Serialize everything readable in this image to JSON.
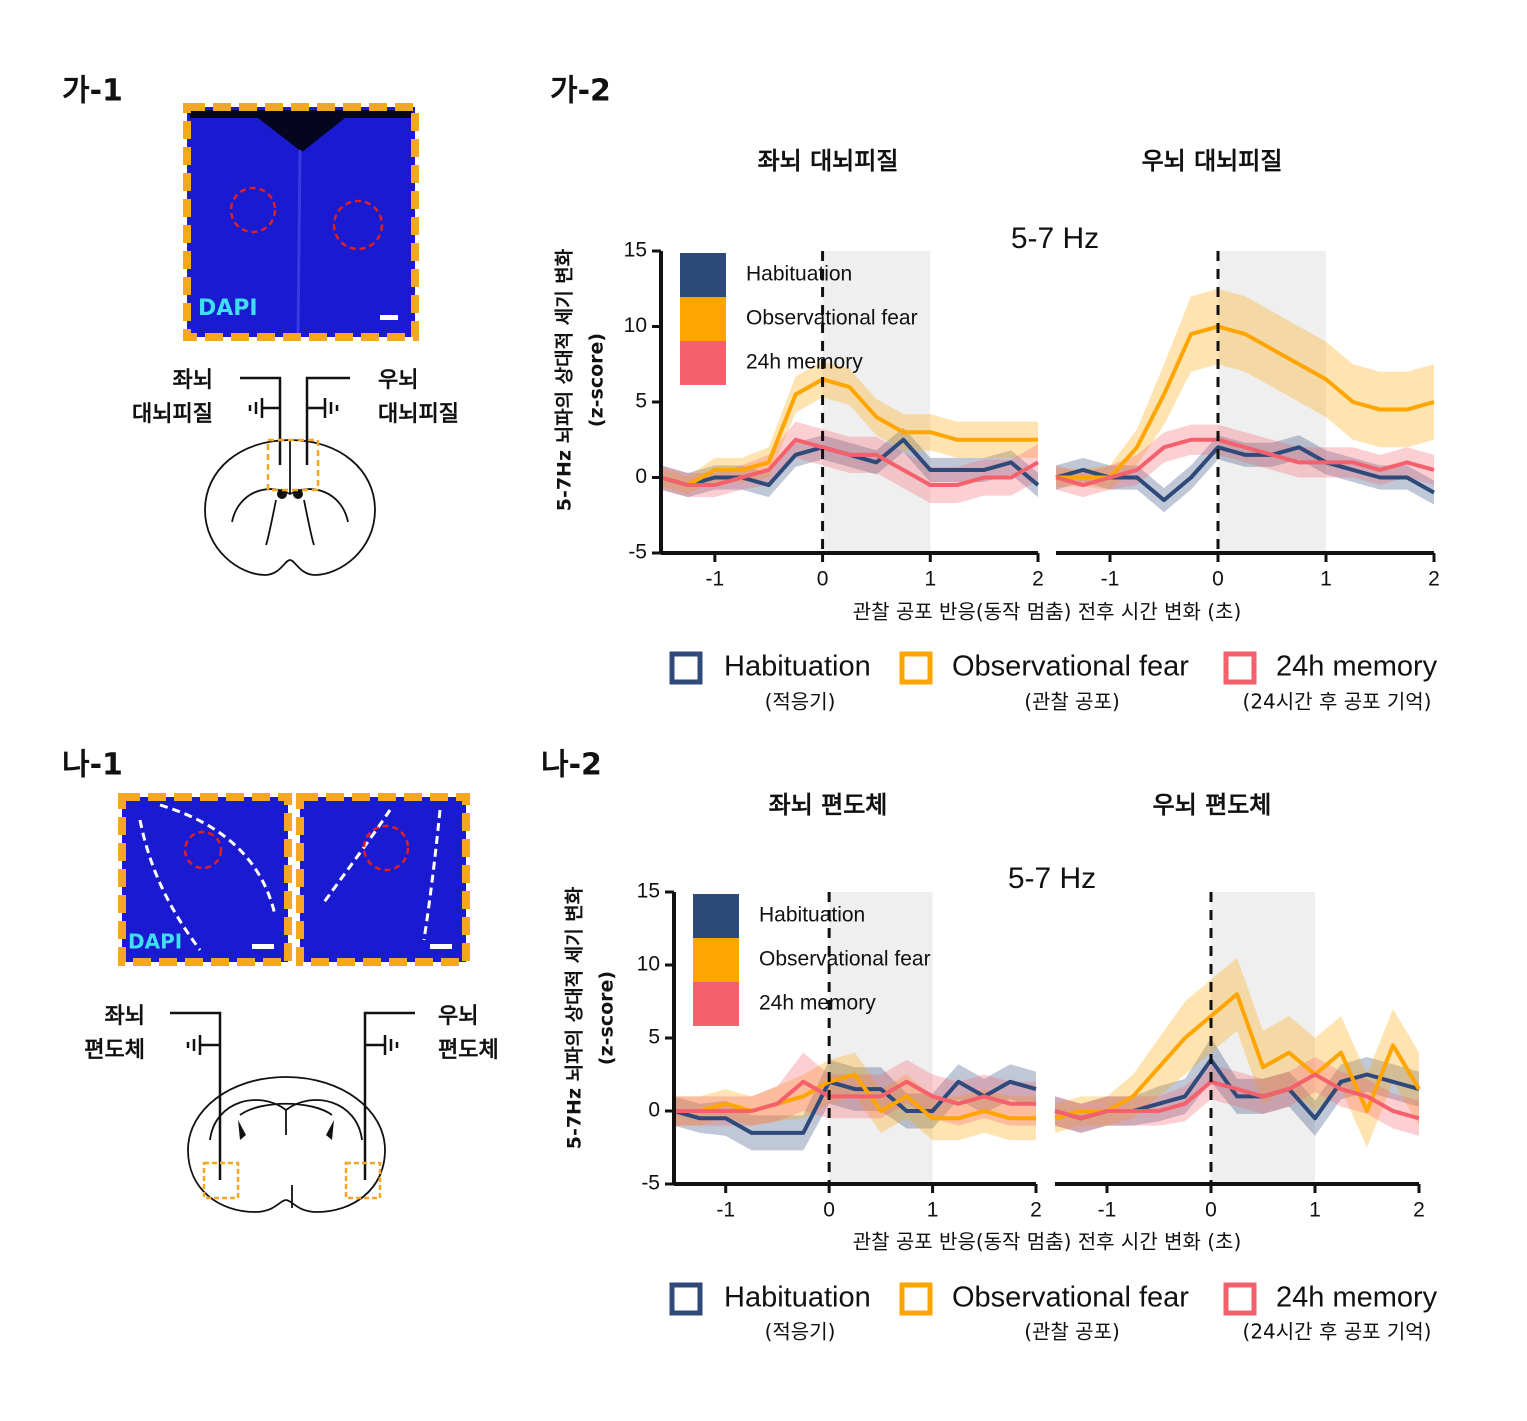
{
  "panels": [
    {
      "label": "가-1",
      "stain": "DAPI",
      "left": [
        "좌뇌",
        "대뇌피질"
      ],
      "right": [
        "우뇌",
        "대뇌피질"
      ]
    },
    {
      "label": "나-1",
      "stain": "DAPI",
      "left": [
        "좌뇌",
        "편도체"
      ],
      "right": [
        "우뇌",
        "편도체"
      ]
    }
  ],
  "rows": [
    {
      "label": "가-2",
      "band": "5-7 Hz",
      "ylabel": "5-7Hz 뇌파의 상대적 세기 변화",
      "yunit": "(z-score)",
      "xlabel": "관찰 공포 반응(동작 멈춤) 전후 시간  변화 (초)",
      "notes": [
        "(적응기)",
        "(관찰 공포)",
        "(24시간 후 공포 기억)"
      ]
    },
    {
      "label": "나-2",
      "band": "5-7 Hz",
      "ylabel": "5-7Hz 뇌파의 상대적 세기 변화",
      "yunit": "(z-score)",
      "xlabel": "관찰 공포 반응(동작 멈춤) 전후 시간  변화 (초)",
      "notes": [
        "(적응기)",
        "(관찰 공포)",
        "(24시간 후 공포 기억)"
      ]
    }
  ],
  "chart_data": [
    {
      "type": "line",
      "title": "좌뇌 대뇌피질",
      "legend": "upper left",
      "x": [
        -1.5,
        -1.25,
        -1,
        -0.75,
        -0.5,
        -0.25,
        0,
        0.25,
        0.5,
        0.75,
        1,
        1.25,
        1.5,
        1.75,
        2
      ],
      "xlim": [
        -1.5,
        2
      ],
      "ylim": [
        -5,
        15
      ],
      "xticks": [
        -1,
        0,
        1,
        2
      ],
      "yticks": [
        -5,
        0,
        5,
        10,
        15
      ],
      "shade": [
        0,
        1
      ],
      "vline": 0,
      "series": [
        {
          "name": "Habituation",
          "color": "#2e4a7a",
          "values": [
            0,
            -0.5,
            0,
            0,
            -0.5,
            1.5,
            2,
            1.5,
            1,
            2.5,
            0.5,
            0.5,
            0.5,
            1,
            -0.5
          ],
          "errors": [
            0.8,
            0.8,
            0.8,
            0.8,
            0.8,
            0.8,
            0.8,
            0.8,
            0.8,
            0.8,
            0.8,
            0.8,
            0.8,
            0.8,
            0.8
          ]
        },
        {
          "name": "Observational fear",
          "color": "#ffa500",
          "values": [
            0,
            -0.5,
            0.5,
            0.5,
            1,
            5.5,
            6.5,
            6,
            4,
            3,
            3,
            2.5,
            2.5,
            2.5,
            2.5
          ],
          "errors": [
            0.6,
            0.6,
            0.8,
            0.8,
            1,
            1.2,
            1.2,
            1.2,
            1.2,
            1.2,
            1.2,
            1.2,
            1.2,
            1.2,
            1.2
          ]
        },
        {
          "name": "24h memory",
          "color": "#f4606c",
          "values": [
            0,
            -0.5,
            -0.5,
            0,
            0.5,
            2.5,
            2,
            1.5,
            1.5,
            0.5,
            -0.5,
            -0.5,
            0,
            0,
            1
          ],
          "errors": [
            0.8,
            0.8,
            0.8,
            0.8,
            1,
            1.2,
            1.2,
            1.2,
            1.2,
            1.2,
            1.2,
            1.2,
            1.2,
            1.2,
            1.2
          ]
        }
      ]
    },
    {
      "type": "line",
      "title": "우뇌 대뇌피질",
      "x": [
        -1.5,
        -1.25,
        -1,
        -0.75,
        -0.5,
        -0.25,
        0,
        0.25,
        0.5,
        0.75,
        1,
        1.25,
        1.5,
        1.75,
        2
      ],
      "xlim": [
        -1.5,
        2
      ],
      "ylim": [
        -5,
        15
      ],
      "xticks": [
        -1,
        0,
        1,
        2
      ],
      "shade": [
        0,
        1
      ],
      "vline": 0,
      "series": [
        {
          "name": "Habituation",
          "color": "#2e4a7a",
          "values": [
            0,
            0.5,
            0,
            0,
            -1.5,
            0,
            2,
            1.5,
            1.5,
            2,
            1,
            0.5,
            0,
            0,
            -1
          ],
          "errors": [
            0.8,
            0.8,
            0.8,
            0.8,
            0.8,
            0.8,
            0.8,
            0.8,
            0.8,
            0.8,
            0.8,
            0.8,
            0.8,
            0.8,
            0.8
          ]
        },
        {
          "name": "Observational fear",
          "color": "#ffa500",
          "values": [
            0,
            0,
            0,
            2,
            5.5,
            9.5,
            10,
            9.5,
            8.5,
            7.5,
            6.5,
            5,
            4.5,
            4.5,
            5
          ],
          "errors": [
            0.6,
            0.6,
            0.8,
            1.2,
            2,
            2.5,
            2.5,
            2.5,
            2.5,
            2.5,
            2.5,
            2.5,
            2.5,
            2.5,
            2.5
          ]
        },
        {
          "name": "24h memory",
          "color": "#f4606c",
          "values": [
            0,
            -0.5,
            0,
            0.5,
            2,
            2.5,
            2.5,
            2,
            1.5,
            1,
            1,
            1,
            0.5,
            1,
            0.5
          ],
          "errors": [
            0.8,
            0.8,
            0.8,
            1,
            1,
            1,
            1,
            1,
            1,
            1,
            1,
            1,
            1,
            1,
            1
          ]
        }
      ]
    },
    {
      "type": "line",
      "title": "좌뇌 편도체",
      "legend": "upper left",
      "x": [
        -1.5,
        -1.25,
        -1,
        -0.75,
        -0.5,
        -0.25,
        0,
        0.25,
        0.5,
        0.75,
        1,
        1.25,
        1.5,
        1.75,
        2
      ],
      "xlim": [
        -1.5,
        2
      ],
      "ylim": [
        -5,
        15
      ],
      "xticks": [
        -1,
        0,
        1,
        2
      ],
      "yticks": [
        -5,
        0,
        5,
        10,
        15
      ],
      "shade": [
        0,
        1
      ],
      "vline": 0,
      "series": [
        {
          "name": "Habituation",
          "color": "#2e4a7a",
          "values": [
            0,
            -0.5,
            -0.5,
            -1.5,
            -1.5,
            -1.5,
            2,
            1.5,
            1.5,
            0,
            0,
            2,
            1,
            2,
            1.5
          ],
          "errors": [
            1,
            1,
            1.2,
            1.2,
            1.2,
            1.2,
            1.5,
            1.5,
            1.5,
            1.2,
            1.2,
            1.2,
            1.2,
            1.2,
            1.2
          ]
        },
        {
          "name": "Observational fear",
          "color": "#ffa500",
          "values": [
            0,
            0,
            0.5,
            0,
            0.5,
            1,
            2,
            2.5,
            0,
            1,
            -0.5,
            -0.5,
            0,
            -0.5,
            -0.5
          ],
          "errors": [
            1,
            1,
            1,
            1,
            1.2,
            1.5,
            1.5,
            1.5,
            1.5,
            1.5,
            1.5,
            1.5,
            1.5,
            1.5,
            1.5
          ]
        },
        {
          "name": "24h memory",
          "color": "#f4606c",
          "values": [
            0,
            0,
            0,
            0,
            0.5,
            2,
            1,
            1,
            1,
            2,
            1,
            0.5,
            1,
            0.5,
            0.5
          ],
          "errors": [
            1,
            1,
            1,
            1,
            1.2,
            2,
            1.5,
            1.5,
            1.5,
            1.5,
            1.5,
            1.5,
            1.5,
            1.5,
            1.5
          ]
        }
      ]
    },
    {
      "type": "line",
      "title": "우뇌 편도체",
      "x": [
        -1.5,
        -1.25,
        -1,
        -0.75,
        -0.5,
        -0.25,
        0,
        0.25,
        0.5,
        0.75,
        1,
        1.25,
        1.5,
        1.75,
        2
      ],
      "xlim": [
        -1.5,
        2
      ],
      "ylim": [
        -5,
        15
      ],
      "xticks": [
        -1,
        0,
        1,
        2
      ],
      "shade": [
        0,
        1
      ],
      "vline": 0,
      "series": [
        {
          "name": "Habituation",
          "color": "#2e4a7a",
          "values": [
            0,
            -0.5,
            0,
            0,
            0.5,
            1,
            3.5,
            1,
            1,
            1.5,
            -0.5,
            2,
            2.5,
            2,
            1.5
          ],
          "errors": [
            1,
            1,
            1,
            1,
            1.2,
            1.2,
            1.5,
            1.2,
            1.2,
            1.2,
            1.2,
            1.2,
            1.2,
            1.2,
            1.2
          ]
        },
        {
          "name": "Observational fear",
          "color": "#ffa500",
          "values": [
            -0.5,
            0,
            0,
            1,
            3,
            5,
            6.5,
            8,
            3,
            4,
            2.5,
            4,
            0,
            4.5,
            1.5
          ],
          "errors": [
            1,
            1,
            1,
            1.5,
            2,
            2.5,
            2.5,
            2.5,
            2.5,
            2.5,
            2.5,
            2.5,
            2.5,
            2.5,
            2.5
          ]
        },
        {
          "name": "24h memory",
          "color": "#f4606c",
          "values": [
            0,
            -0.5,
            0,
            0,
            0,
            0.5,
            2,
            1.5,
            1,
            1.5,
            2.5,
            1.5,
            1,
            0,
            -0.5
          ],
          "errors": [
            1,
            1,
            1,
            1,
            1,
            1.2,
            1.2,
            1.2,
            1.2,
            1.2,
            1.2,
            1.2,
            1.2,
            1.2,
            1.2
          ]
        }
      ]
    }
  ]
}
